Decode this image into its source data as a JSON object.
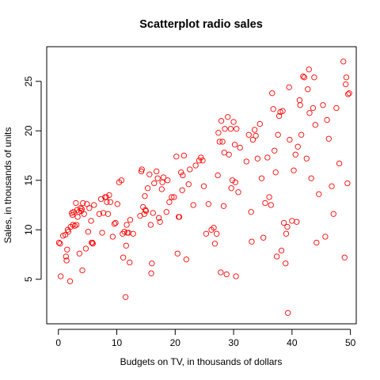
{
  "chart_data": {
    "type": "scatter",
    "title": "Scatterplot radio sales",
    "xlabel": "Budgets on TV, in thousands of dollars",
    "ylabel": "Sales, in thousands of units",
    "xlim": [
      -2,
      51
    ],
    "ylim": [
      0.5,
      28.5
    ],
    "xticks": [
      0,
      10,
      20,
      30,
      40,
      50
    ],
    "yticks": [
      5,
      10,
      15,
      20,
      25
    ],
    "grid": false,
    "marker_color": "#ff0000",
    "marker": "open-circle",
    "points": [
      [
        0.1,
        8.7
      ],
      [
        0.3,
        8.6
      ],
      [
        0.4,
        5.3
      ],
      [
        0.8,
        9.4
      ],
      [
        1.2,
        9.5
      ],
      [
        1.3,
        7.3
      ],
      [
        1.4,
        6.9
      ],
      [
        1.5,
        8.0
      ],
      [
        1.6,
        10.0
      ],
      [
        1.7,
        9.8
      ],
      [
        2.0,
        4.8
      ],
      [
        2.1,
        10.3
      ],
      [
        2.3,
        11.7
      ],
      [
        2.4,
        11.5
      ],
      [
        2.5,
        10.5
      ],
      [
        2.6,
        11.8
      ],
      [
        2.8,
        10.4
      ],
      [
        3.0,
        12.7
      ],
      [
        3.1,
        10.5
      ],
      [
        3.2,
        12.0
      ],
      [
        3.3,
        11.3
      ],
      [
        3.5,
        11.8
      ],
      [
        3.6,
        7.6
      ],
      [
        3.8,
        12.2
      ],
      [
        3.9,
        11.9
      ],
      [
        4.0,
        12.1
      ],
      [
        4.1,
        5.9
      ],
      [
        4.2,
        12.7
      ],
      [
        4.4,
        11.6
      ],
      [
        4.7,
        8.1
      ],
      [
        4.9,
        12.6
      ],
      [
        5.1,
        9.8
      ],
      [
        5.3,
        12.2
      ],
      [
        5.6,
        10.9
      ],
      [
        5.7,
        8.7
      ],
      [
        5.8,
        8.7
      ],
      [
        5.9,
        8.6
      ],
      [
        6.1,
        12.5
      ],
      [
        7.0,
        11.6
      ],
      [
        7.3,
        13.1
      ],
      [
        7.5,
        9.7
      ],
      [
        7.7,
        11.7
      ],
      [
        8.0,
        13.3
      ],
      [
        8.2,
        13.3
      ],
      [
        8.3,
        12.8
      ],
      [
        8.5,
        11.6
      ],
      [
        8.7,
        13.5
      ],
      [
        8.9,
        12.8
      ],
      [
        9.3,
        9.3
      ],
      [
        9.6,
        10.6
      ],
      [
        9.8,
        10.7
      ],
      [
        10.1,
        12.6
      ],
      [
        10.4,
        14.8
      ],
      [
        10.8,
        15.0
      ],
      [
        11.0,
        9.6
      ],
      [
        11.1,
        7.2
      ],
      [
        11.3,
        9.8
      ],
      [
        11.5,
        3.2
      ],
      [
        11.6,
        8.4
      ],
      [
        11.7,
        10.5
      ],
      [
        11.8,
        9.7
      ],
      [
        12.0,
        9.7
      ],
      [
        12.2,
        6.7
      ],
      [
        12.3,
        11.0
      ],
      [
        12.8,
        9.6
      ],
      [
        14.0,
        11.4
      ],
      [
        14.2,
        15.9
      ],
      [
        14.3,
        16.1
      ],
      [
        14.5,
        12.3
      ],
      [
        14.7,
        11.6
      ],
      [
        14.8,
        13.4
      ],
      [
        14.9,
        12.0
      ],
      [
        15.0,
        11.9
      ],
      [
        15.3,
        14.2
      ],
      [
        15.6,
        15.6
      ],
      [
        15.8,
        10.5
      ],
      [
        15.9,
        5.6
      ],
      [
        16.0,
        6.6
      ],
      [
        16.2,
        11.7
      ],
      [
        16.4,
        14.7
      ],
      [
        16.8,
        15.9
      ],
      [
        17.0,
        15.2
      ],
      [
        17.2,
        11.2
      ],
      [
        17.4,
        10.8
      ],
      [
        17.7,
        14.1
      ],
      [
        17.8,
        14.8
      ],
      [
        18.0,
        15.3
      ],
      [
        18.5,
        11.8
      ],
      [
        18.7,
        15.0
      ],
      [
        19.0,
        12.8
      ],
      [
        19.4,
        13.3
      ],
      [
        19.8,
        13.3
      ],
      [
        20.2,
        17.4
      ],
      [
        20.4,
        7.6
      ],
      [
        20.6,
        11.3
      ],
      [
        20.7,
        11.3
      ],
      [
        21.0,
        15.8
      ],
      [
        21.2,
        14.0
      ],
      [
        21.3,
        15.5
      ],
      [
        21.5,
        17.5
      ],
      [
        21.9,
        7.0
      ],
      [
        22.3,
        14.6
      ],
      [
        22.5,
        16.1
      ],
      [
        23.1,
        12.5
      ],
      [
        23.5,
        16.5
      ],
      [
        24.1,
        17.0
      ],
      [
        24.4,
        17.3
      ],
      [
        24.7,
        17.0
      ],
      [
        24.9,
        14.4
      ],
      [
        25.3,
        9.6
      ],
      [
        25.7,
        12.6
      ],
      [
        26.2,
        10.0
      ],
      [
        26.6,
        10.2
      ],
      [
        26.8,
        8.6
      ],
      [
        27.1,
        9.6
      ],
      [
        27.3,
        15.5
      ],
      [
        27.4,
        19.8
      ],
      [
        27.6,
        18.9
      ],
      [
        27.8,
        5.7
      ],
      [
        27.9,
        21.0
      ],
      [
        28.1,
        18.9
      ],
      [
        28.3,
        12.4
      ],
      [
        28.4,
        17.8
      ],
      [
        28.5,
        20.2
      ],
      [
        28.8,
        5.5
      ],
      [
        29.0,
        21.4
      ],
      [
        29.2,
        17.6
      ],
      [
        29.5,
        20.2
      ],
      [
        29.6,
        14.2
      ],
      [
        29.8,
        15.0
      ],
      [
        30.0,
        20.9
      ],
      [
        30.2,
        18.6
      ],
      [
        30.3,
        14.8
      ],
      [
        30.4,
        5.3
      ],
      [
        30.5,
        20.2
      ],
      [
        30.8,
        13.8
      ],
      [
        31.1,
        18.3
      ],
      [
        32.2,
        16.9
      ],
      [
        32.6,
        19.6
      ],
      [
        33.0,
        11.8
      ],
      [
        33.1,
        8.8
      ],
      [
        33.3,
        19.1
      ],
      [
        33.6,
        20.1
      ],
      [
        33.8,
        19.5
      ],
      [
        34.1,
        17.2
      ],
      [
        34.5,
        20.7
      ],
      [
        34.8,
        15.2
      ],
      [
        35.1,
        9.2
      ],
      [
        35.4,
        12.7
      ],
      [
        35.8,
        17.3
      ],
      [
        36.1,
        13.3
      ],
      [
        36.4,
        12.5
      ],
      [
        36.6,
        23.8
      ],
      [
        36.8,
        22.2
      ],
      [
        37.0,
        18.0
      ],
      [
        37.2,
        15.8
      ],
      [
        37.4,
        7.3
      ],
      [
        37.6,
        19.6
      ],
      [
        37.8,
        21.5
      ],
      [
        38.0,
        21.9
      ],
      [
        38.2,
        7.9
      ],
      [
        38.4,
        22.0
      ],
      [
        38.6,
        10.7
      ],
      [
        38.9,
        6.6
      ],
      [
        39.0,
        9.6
      ],
      [
        39.2,
        10.3
      ],
      [
        39.3,
        1.6
      ],
      [
        39.5,
        24.4
      ],
      [
        39.6,
        19.1
      ],
      [
        40.0,
        10.9
      ],
      [
        40.3,
        16.0
      ],
      [
        40.6,
        17.6
      ],
      [
        40.8,
        10.8
      ],
      [
        41.0,
        18.4
      ],
      [
        41.3,
        23.1
      ],
      [
        41.4,
        22.6
      ],
      [
        41.6,
        19.6
      ],
      [
        41.9,
        25.5
      ],
      [
        42.1,
        25.4
      ],
      [
        42.5,
        17.2
      ],
      [
        42.7,
        24.2
      ],
      [
        42.9,
        26.2
      ],
      [
        43.0,
        21.8
      ],
      [
        43.3,
        15.2
      ],
      [
        43.6,
        22.3
      ],
      [
        43.8,
        25.4
      ],
      [
        44.0,
        20.6
      ],
      [
        44.2,
        8.7
      ],
      [
        44.6,
        13.6
      ],
      [
        45.3,
        22.6
      ],
      [
        45.7,
        9.3
      ],
      [
        46.0,
        21.1
      ],
      [
        46.3,
        19.2
      ],
      [
        46.8,
        14.4
      ],
      [
        47.1,
        11.6
      ],
      [
        47.6,
        22.3
      ],
      [
        48.1,
        16.7
      ],
      [
        48.8,
        27.0
      ],
      [
        49.0,
        7.2
      ],
      [
        49.2,
        24.7
      ],
      [
        49.3,
        25.4
      ],
      [
        49.5,
        14.7
      ],
      [
        49.6,
        23.7
      ],
      [
        49.8,
        23.8
      ]
    ]
  }
}
